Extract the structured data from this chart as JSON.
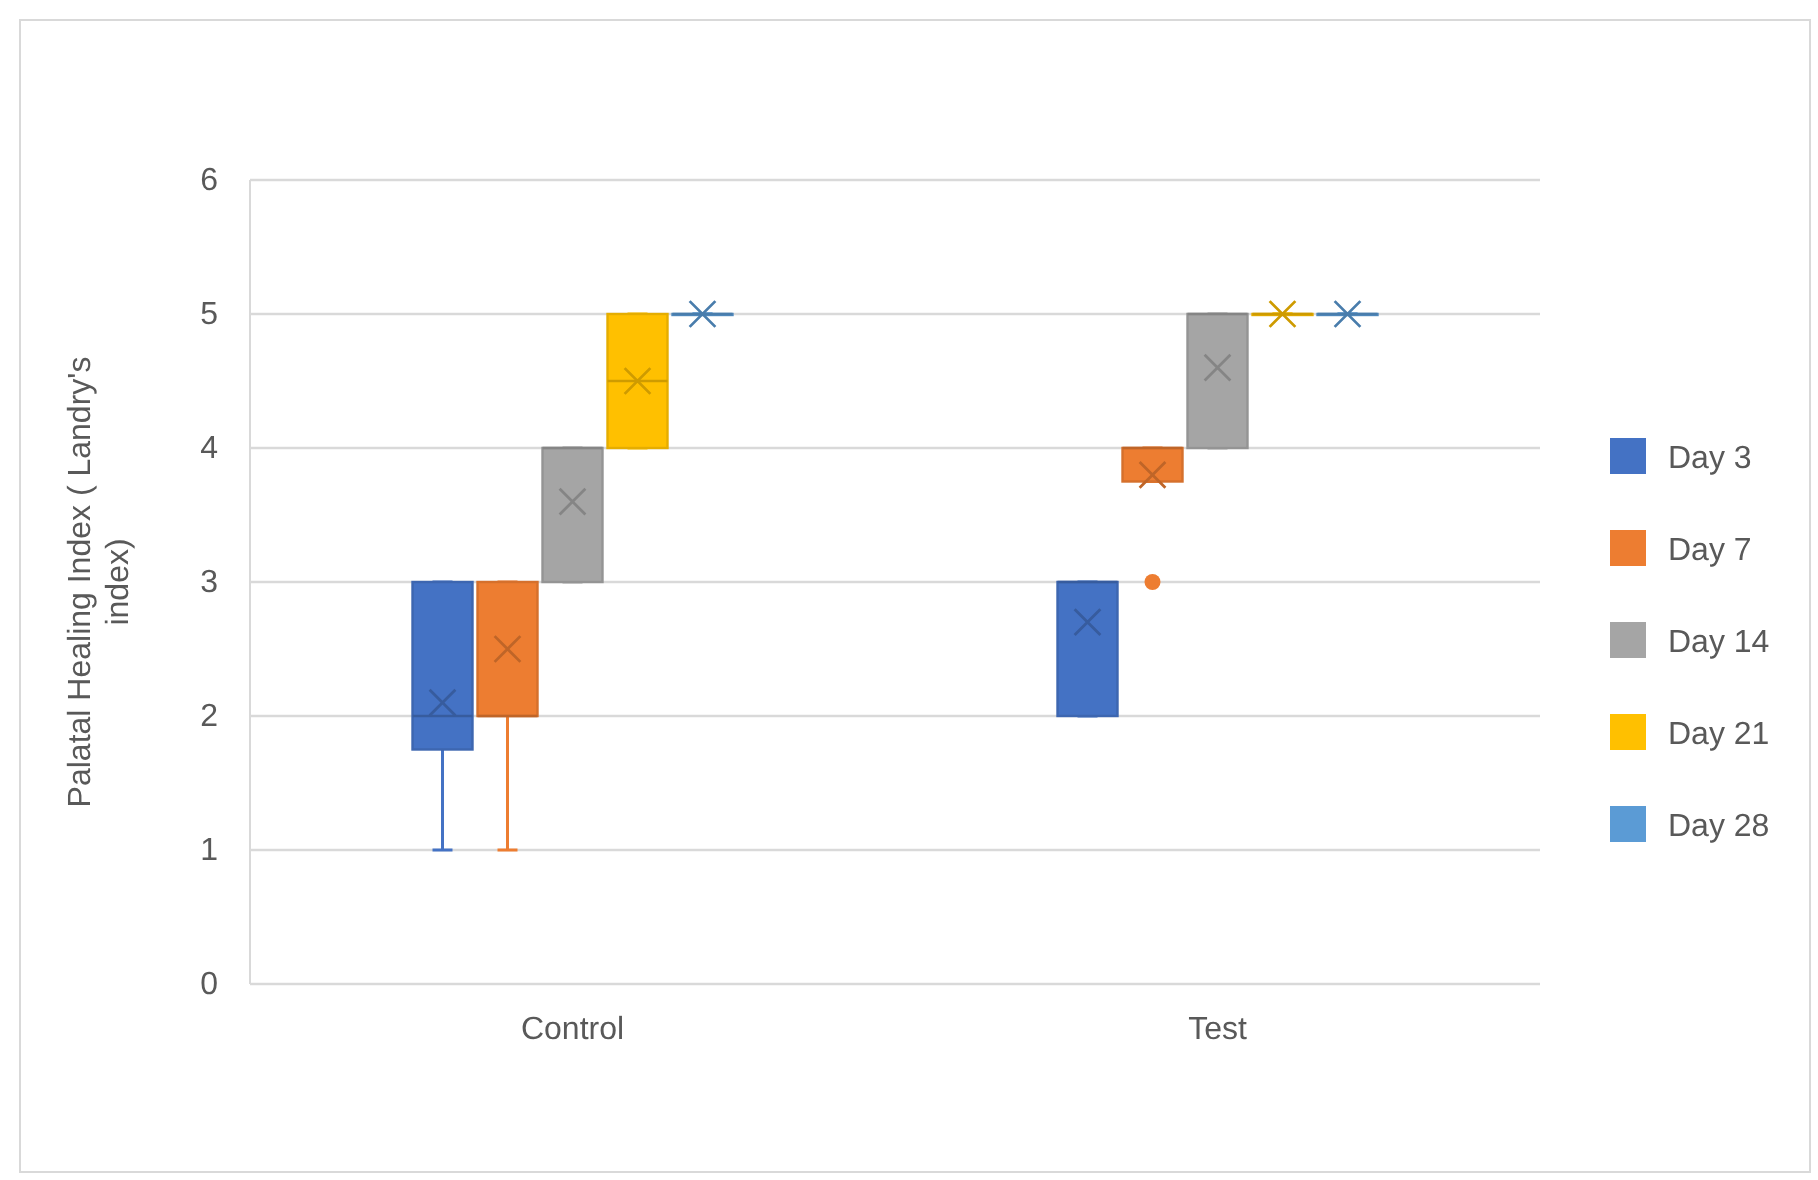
{
  "chart_data": {
    "type": "box",
    "ylabel": "Palatal Healing Index ( Landry's index)",
    "categories": [
      "Control",
      "Test"
    ],
    "ylim": [
      0,
      6
    ],
    "yticks": [
      0,
      1,
      2,
      3,
      4,
      5,
      6
    ],
    "grid": "y",
    "legend": "right",
    "series": [
      {
        "name": "Day 3",
        "color": "#4472c4",
        "boxes": [
          {
            "low": 1,
            "q1": 1.75,
            "median": 2,
            "q3": 3,
            "high": 3,
            "mean": 2.1
          },
          {
            "low": 2,
            "q1": 2,
            "median": 3,
            "q3": 3,
            "high": 3,
            "mean": 2.7
          }
        ]
      },
      {
        "name": "Day 7",
        "color": "#ed7d31",
        "boxes": [
          {
            "low": 1,
            "q1": 2,
            "median": 2,
            "q3": 3,
            "high": 3,
            "mean": 2.5
          },
          {
            "low": 3.75,
            "q1": 3.75,
            "median": 4,
            "q3": 4,
            "high": 4,
            "mean": 3.8,
            "outliers": [
              3
            ]
          }
        ]
      },
      {
        "name": "Day 14",
        "color": "#a5a5a5",
        "boxes": [
          {
            "low": 3,
            "q1": 3,
            "median": 4,
            "q3": 4,
            "high": 4,
            "mean": 3.6
          },
          {
            "low": 4,
            "q1": 4,
            "median": 5,
            "q3": 5,
            "high": 5,
            "mean": 4.6
          }
        ]
      },
      {
        "name": "Day 21",
        "color": "#ffc000",
        "boxes": [
          {
            "low": 4,
            "q1": 4,
            "median": 4.5,
            "q3": 5,
            "high": 5,
            "mean": 4.5
          },
          {
            "low": 5,
            "q1": 5,
            "median": 5,
            "q3": 5,
            "high": 5,
            "mean": 5
          }
        ]
      },
      {
        "name": "Day 28",
        "color": "#5b9bd5",
        "boxes": [
          {
            "low": 5,
            "q1": 5,
            "median": 5,
            "q3": 5,
            "high": 5,
            "mean": 5
          },
          {
            "low": 5,
            "q1": 5,
            "median": 5,
            "q3": 5,
            "high": 5,
            "mean": 5
          }
        ]
      }
    ]
  }
}
